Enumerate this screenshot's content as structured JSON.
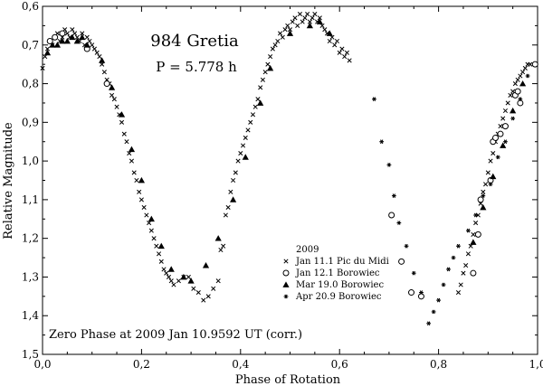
{
  "chart_data": {
    "type": "scatter",
    "title": "984 Gretia",
    "subtitle": "P = 5.778 h",
    "annotation": "Zero Phase at 2009 Jan 10.9592 UT (corr.)",
    "xlabel": "Phase of Rotation",
    "ylabel": "Relative Magnitude",
    "xlim": [
      0.0,
      1.0
    ],
    "ylim": [
      0.6,
      1.5
    ],
    "y_inverted": true,
    "grid": false,
    "legend_position": "bottom-center",
    "legend_title": "2009",
    "x_ticks": [
      {
        "value": 0.0,
        "label": "0,0"
      },
      {
        "value": 0.2,
        "label": "0,2"
      },
      {
        "value": 0.4,
        "label": "0,4"
      },
      {
        "value": 0.6,
        "label": "0,6"
      },
      {
        "value": 0.8,
        "label": "0,8"
      },
      {
        "value": 1.0,
        "label": "1,0"
      }
    ],
    "y_ticks": [
      {
        "value": 0.6,
        "label": "0,6"
      },
      {
        "value": 0.7,
        "label": "0,7"
      },
      {
        "value": 0.8,
        "label": "0,8"
      },
      {
        "value": 0.9,
        "label": "0,9"
      },
      {
        "value": 1.0,
        "label": "1,0"
      },
      {
        "value": 1.1,
        "label": "1,1"
      },
      {
        "value": 1.2,
        "label": "1,2"
      },
      {
        "value": 1.3,
        "label": "1,3"
      },
      {
        "value": 1.4,
        "label": "1,4"
      },
      {
        "value": 1.5,
        "label": "1,5"
      }
    ],
    "series": [
      {
        "name": "Jan 11.1 Pic du Midi",
        "marker": "x",
        "points": [
          [
            0.0,
            0.76
          ],
          [
            0.005,
            0.73
          ],
          [
            0.01,
            0.71
          ],
          [
            0.015,
            0.69
          ],
          [
            0.02,
            0.7
          ],
          [
            0.025,
            0.68
          ],
          [
            0.03,
            0.67
          ],
          [
            0.035,
            0.69
          ],
          [
            0.04,
            0.68
          ],
          [
            0.045,
            0.66
          ],
          [
            0.05,
            0.67
          ],
          [
            0.055,
            0.68
          ],
          [
            0.06,
            0.66
          ],
          [
            0.065,
            0.67
          ],
          [
            0.07,
            0.68
          ],
          [
            0.075,
            0.69
          ],
          [
            0.08,
            0.67
          ],
          [
            0.085,
            0.7
          ],
          [
            0.09,
            0.68
          ],
          [
            0.095,
            0.69
          ],
          [
            0.1,
            0.7
          ],
          [
            0.105,
            0.71
          ],
          [
            0.11,
            0.72
          ],
          [
            0.115,
            0.73
          ],
          [
            0.12,
            0.75
          ],
          [
            0.125,
            0.77
          ],
          [
            0.13,
            0.79
          ],
          [
            0.135,
            0.8
          ],
          [
            0.14,
            0.83
          ],
          [
            0.145,
            0.84
          ],
          [
            0.15,
            0.86
          ],
          [
            0.155,
            0.88
          ],
          [
            0.16,
            0.9
          ],
          [
            0.165,
            0.93
          ],
          [
            0.17,
            0.95
          ],
          [
            0.175,
            0.98
          ],
          [
            0.18,
            1.0
          ],
          [
            0.185,
            1.03
          ],
          [
            0.19,
            1.05
          ],
          [
            0.195,
            1.08
          ],
          [
            0.2,
            1.1
          ],
          [
            0.205,
            1.12
          ],
          [
            0.21,
            1.14
          ],
          [
            0.215,
            1.16
          ],
          [
            0.22,
            1.18
          ],
          [
            0.225,
            1.2
          ],
          [
            0.23,
            1.22
          ],
          [
            0.235,
            1.24
          ],
          [
            0.24,
            1.26
          ],
          [
            0.245,
            1.28
          ],
          [
            0.25,
            1.29
          ],
          [
            0.255,
            1.3
          ],
          [
            0.26,
            1.31
          ],
          [
            0.265,
            1.32
          ],
          [
            0.275,
            1.31
          ],
          [
            0.285,
            1.3
          ],
          [
            0.295,
            1.3
          ],
          [
            0.305,
            1.33
          ],
          [
            0.315,
            1.34
          ],
          [
            0.325,
            1.36
          ],
          [
            0.335,
            1.35
          ],
          [
            0.345,
            1.33
          ],
          [
            0.355,
            1.31
          ],
          [
            0.36,
            1.23
          ],
          [
            0.365,
            1.22
          ],
          [
            0.37,
            1.14
          ],
          [
            0.375,
            1.12
          ],
          [
            0.38,
            1.08
          ],
          [
            0.385,
            1.05
          ],
          [
            0.39,
            1.03
          ],
          [
            0.395,
            1.0
          ],
          [
            0.4,
            0.98
          ],
          [
            0.405,
            0.96
          ],
          [
            0.41,
            0.94
          ],
          [
            0.415,
            0.92
          ],
          [
            0.42,
            0.9
          ],
          [
            0.425,
            0.88
          ],
          [
            0.43,
            0.86
          ],
          [
            0.435,
            0.84
          ],
          [
            0.44,
            0.81
          ],
          [
            0.445,
            0.79
          ],
          [
            0.45,
            0.77
          ],
          [
            0.455,
            0.75
          ],
          [
            0.46,
            0.73
          ],
          [
            0.465,
            0.71
          ],
          [
            0.47,
            0.7
          ],
          [
            0.475,
            0.69
          ],
          [
            0.48,
            0.67
          ],
          [
            0.485,
            0.68
          ],
          [
            0.49,
            0.66
          ],
          [
            0.495,
            0.65
          ],
          [
            0.5,
            0.66
          ],
          [
            0.505,
            0.64
          ],
          [
            0.51,
            0.63
          ],
          [
            0.515,
            0.65
          ],
          [
            0.52,
            0.62
          ],
          [
            0.525,
            0.64
          ],
          [
            0.53,
            0.63
          ],
          [
            0.535,
            0.62
          ],
          [
            0.54,
            0.64
          ],
          [
            0.545,
            0.63
          ],
          [
            0.55,
            0.62
          ],
          [
            0.555,
            0.64
          ],
          [
            0.56,
            0.63
          ],
          [
            0.565,
            0.65
          ],
          [
            0.57,
            0.66
          ],
          [
            0.575,
            0.67
          ],
          [
            0.58,
            0.69
          ],
          [
            0.585,
            0.68
          ],
          [
            0.59,
            0.7
          ],
          [
            0.595,
            0.69
          ],
          [
            0.6,
            0.72
          ],
          [
            0.605,
            0.71
          ],
          [
            0.61,
            0.73
          ],
          [
            0.615,
            0.72
          ],
          [
            0.62,
            0.74
          ],
          [
            0.84,
            1.34
          ],
          [
            0.845,
            1.32
          ],
          [
            0.85,
            1.29
          ],
          [
            0.855,
            1.27
          ],
          [
            0.86,
            1.24
          ],
          [
            0.865,
            1.22
          ],
          [
            0.87,
            1.19
          ],
          [
            0.875,
            1.16
          ],
          [
            0.88,
            1.14
          ],
          [
            0.885,
            1.11
          ],
          [
            0.89,
            1.08
          ],
          [
            0.895,
            1.06
          ],
          [
            0.9,
            1.03
          ],
          [
            0.905,
            1.0
          ],
          [
            0.91,
            0.98
          ],
          [
            0.915,
            0.95
          ],
          [
            0.92,
            0.93
          ],
          [
            0.925,
            0.91
          ],
          [
            0.93,
            0.89
          ],
          [
            0.935,
            0.87
          ],
          [
            0.94,
            0.85
          ],
          [
            0.945,
            0.83
          ],
          [
            0.95,
            0.82
          ],
          [
            0.955,
            0.8
          ],
          [
            0.96,
            0.79
          ],
          [
            0.965,
            0.78
          ],
          [
            0.97,
            0.77
          ],
          [
            0.975,
            0.76
          ],
          [
            0.98,
            0.75
          ],
          [
            0.985,
            0.75
          ]
        ]
      },
      {
        "name": "Jan 12.1 Borowiec",
        "marker": "open-circle",
        "points": [
          [
            0.015,
            0.69
          ],
          [
            0.025,
            0.68
          ],
          [
            0.04,
            0.67
          ],
          [
            0.09,
            0.71
          ],
          [
            0.13,
            0.8
          ],
          [
            0.705,
            1.14
          ],
          [
            0.725,
            1.26
          ],
          [
            0.745,
            1.34
          ],
          [
            0.765,
            1.35
          ],
          [
            0.87,
            1.29
          ],
          [
            0.88,
            1.19
          ],
          [
            0.885,
            1.1
          ],
          [
            0.905,
            1.05
          ],
          [
            0.91,
            0.95
          ],
          [
            0.915,
            0.94
          ],
          [
            0.925,
            0.93
          ],
          [
            0.935,
            0.91
          ],
          [
            0.955,
            0.83
          ],
          [
            0.96,
            0.82
          ],
          [
            0.965,
            0.85
          ],
          [
            0.995,
            0.75
          ]
        ]
      },
      {
        "name": "Mar 19.0 Borowiec",
        "marker": "filled-triangle",
        "points": [
          [
            0.01,
            0.72
          ],
          [
            0.02,
            0.7
          ],
          [
            0.03,
            0.7
          ],
          [
            0.04,
            0.69
          ],
          [
            0.05,
            0.69
          ],
          [
            0.06,
            0.68
          ],
          [
            0.07,
            0.69
          ],
          [
            0.08,
            0.68
          ],
          [
            0.09,
            0.7
          ],
          [
            0.12,
            0.74
          ],
          [
            0.14,
            0.81
          ],
          [
            0.16,
            0.88
          ],
          [
            0.18,
            0.97
          ],
          [
            0.2,
            1.05
          ],
          [
            0.22,
            1.15
          ],
          [
            0.24,
            1.22
          ],
          [
            0.26,
            1.28
          ],
          [
            0.285,
            1.3
          ],
          [
            0.3,
            1.31
          ],
          [
            0.33,
            1.27
          ],
          [
            0.355,
            1.2
          ],
          [
            0.385,
            1.1
          ],
          [
            0.41,
            0.99
          ],
          [
            0.44,
            0.85
          ],
          [
            0.46,
            0.76
          ],
          [
            0.5,
            0.67
          ],
          [
            0.54,
            0.65
          ],
          [
            0.56,
            0.64
          ],
          [
            0.58,
            0.67
          ],
          [
            0.87,
            1.21
          ],
          [
            0.89,
            1.12
          ],
          [
            0.91,
            1.04
          ],
          [
            0.93,
            0.96
          ],
          [
            0.95,
            0.87
          ],
          [
            0.97,
            0.8
          ]
        ]
      },
      {
        "name": "Apr 20.9 Borowiec",
        "marker": "asterisk",
        "points": [
          [
            0.67,
            0.84
          ],
          [
            0.685,
            0.95
          ],
          [
            0.7,
            1.01
          ],
          [
            0.71,
            1.09
          ],
          [
            0.72,
            1.16
          ],
          [
            0.735,
            1.22
          ],
          [
            0.75,
            1.29
          ],
          [
            0.765,
            1.34
          ],
          [
            0.78,
            1.42
          ],
          [
            0.79,
            1.39
          ],
          [
            0.8,
            1.36
          ],
          [
            0.81,
            1.32
          ],
          [
            0.82,
            1.28
          ],
          [
            0.83,
            1.25
          ],
          [
            0.84,
            1.22
          ],
          [
            0.86,
            1.18
          ],
          [
            0.875,
            1.14
          ],
          [
            0.89,
            1.09
          ],
          [
            0.905,
            1.06
          ],
          [
            0.92,
            0.99
          ],
          [
            0.935,
            0.95
          ],
          [
            0.95,
            0.89
          ],
          [
            0.965,
            0.84
          ],
          [
            0.98,
            0.78
          ]
        ]
      }
    ]
  }
}
